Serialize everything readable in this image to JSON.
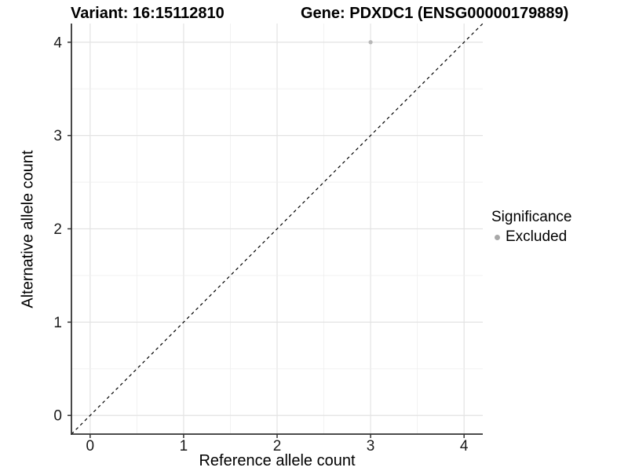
{
  "chart_data": {
    "type": "scatter",
    "titles": {
      "left": "Variant: 16:15112810",
      "right": "Gene: PDXDC1 (ENSG00000179889)"
    },
    "xlabel": "Reference allele count",
    "ylabel": "Alternative allele count",
    "xlim": [
      -0.2,
      4.2
    ],
    "ylim": [
      -0.2,
      4.2
    ],
    "xticks": [
      0,
      1,
      2,
      3,
      4
    ],
    "yticks": [
      0,
      1,
      2,
      3,
      4
    ],
    "minor_step": 0.5,
    "grid": true,
    "identity_line": {
      "style": "dashed",
      "color": "#000000",
      "note": "y = x reference line corner to corner"
    },
    "points": [
      {
        "x": 3,
        "y": 4,
        "significance": "Excluded",
        "color": "#b8b8b8"
      }
    ],
    "legend": {
      "position": "right",
      "title": "Significance",
      "items": [
        {
          "label": "Excluded",
          "color": "#a8a8a8"
        }
      ]
    },
    "colors": {
      "background": "#ffffff",
      "grid_major": "#e3e3e3",
      "grid_minor": "#efefef",
      "axis": "#333333",
      "tick_text": "#1a1a1a"
    }
  }
}
